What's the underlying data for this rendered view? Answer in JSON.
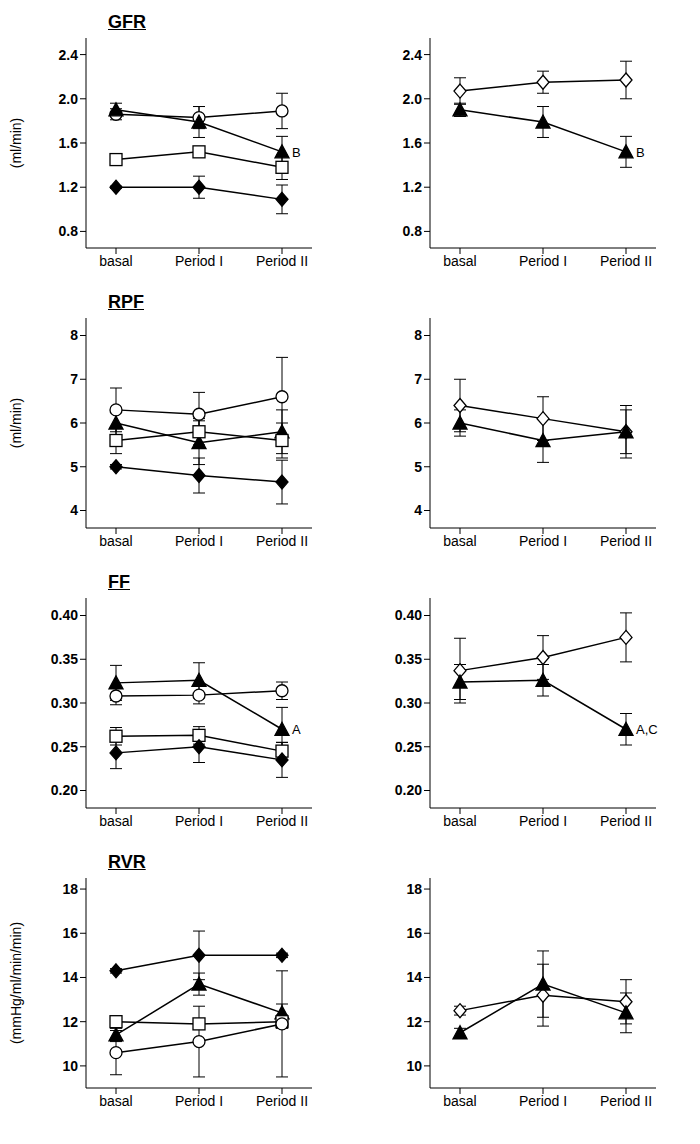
{
  "chart_data": [
    {
      "type": "line",
      "title": "GFR",
      "y_label": "(ml/min)",
      "categories": [
        "basal",
        "Period I",
        "Period II"
      ],
      "ylim": [
        0.65,
        2.55
      ],
      "yticks": [
        0.8,
        1.2,
        1.6,
        {
          "value": 2,
          "label": "2.0"
        },
        2.4
      ],
      "grid": false,
      "series": [
        {
          "color": "#000000",
          "marker": "open_circle",
          "values": [
            1.86,
            1.83,
            1.89
          ],
          "errors": [
            0.05,
            0.1,
            0.16
          ]
        },
        {
          "color": "#000000",
          "marker": "filled_triangle",
          "values": [
            1.9,
            1.79,
            1.52
          ],
          "errors": [
            0.06,
            0.14,
            0.14
          ],
          "annotation": {
            "x": "Period II",
            "text": "B"
          }
        },
        {
          "color": "#000000",
          "marker": "open_square",
          "values": [
            1.45,
            1.52,
            1.38
          ],
          "errors": [
            0.03,
            0.03,
            0.11
          ]
        },
        {
          "color": "#000000",
          "marker": "filled_diamond",
          "values": [
            1.2,
            1.2,
            1.09
          ],
          "errors": [
            0.01,
            0.1,
            0.13
          ]
        }
      ]
    },
    {
      "type": "line",
      "categories": [
        "basal",
        "Period I",
        "Period II"
      ],
      "ylim": [
        0.65,
        2.55
      ],
      "yticks": [
        0.8,
        1.2,
        1.6,
        {
          "value": 2,
          "label": "2.0"
        },
        2.4
      ],
      "grid": false,
      "series": [
        {
          "color": "#000000",
          "marker": "open_diamond",
          "values": [
            2.07,
            2.15,
            2.17
          ],
          "errors": [
            0.12,
            0.1,
            0.17
          ]
        },
        {
          "color": "#000000",
          "marker": "filled_triangle",
          "values": [
            1.9,
            1.79,
            1.52
          ],
          "errors": [
            0.06,
            0.14,
            0.14
          ],
          "annotation": {
            "x": "Period II",
            "text": "B"
          }
        }
      ]
    },
    {
      "type": "line",
      "title": "RPF",
      "y_label": "(ml/min)",
      "categories": [
        "basal",
        "Period I",
        "Period II"
      ],
      "ylim": [
        3.6,
        8.4
      ],
      "yticks": [
        4,
        5,
        6,
        7,
        8
      ],
      "grid": false,
      "series": [
        {
          "color": "#000000",
          "marker": "open_circle",
          "values": [
            6.3,
            6.2,
            6.6
          ],
          "errors": [
            0.5,
            0.5,
            0.9
          ]
        },
        {
          "color": "#000000",
          "marker": "filled_triangle",
          "values": [
            6.0,
            5.55,
            5.8
          ],
          "errors": [
            0.3,
            0.5,
            0.5
          ]
        },
        {
          "color": "#000000",
          "marker": "open_square",
          "values": [
            5.6,
            5.8,
            5.6
          ],
          "errors": [
            0.3,
            0.3,
            0.4
          ]
        },
        {
          "color": "#000000",
          "marker": "filled_diamond",
          "values": [
            5.0,
            4.8,
            4.65
          ],
          "errors": [
            0.05,
            0.4,
            0.5
          ]
        }
      ]
    },
    {
      "type": "line",
      "categories": [
        "basal",
        "Period I",
        "Period II"
      ],
      "ylim": [
        3.6,
        8.4
      ],
      "yticks": [
        4,
        5,
        6,
        7,
        8
      ],
      "grid": false,
      "series": [
        {
          "color": "#000000",
          "marker": "open_diamond",
          "values": [
            6.4,
            6.1,
            5.8
          ],
          "errors": [
            0.6,
            0.5,
            0.6
          ]
        },
        {
          "color": "#000000",
          "marker": "filled_triangle",
          "values": [
            6.0,
            5.6,
            5.8
          ],
          "errors": [
            0.3,
            0.5,
            0.5
          ]
        }
      ]
    },
    {
      "type": "line",
      "title": "FF",
      "categories": [
        "basal",
        "Period I",
        "Period II"
      ],
      "ylim": [
        0.18,
        0.42
      ],
      "yticks": [
        {
          "value": 0.2,
          "label": "0.20"
        },
        0.25,
        {
          "value": 0.3,
          "label": "0.30"
        },
        0.35,
        {
          "value": 0.4,
          "label": "0.40"
        }
      ],
      "grid": false,
      "series": [
        {
          "color": "#000000",
          "marker": "open_circle",
          "values": [
            0.308,
            0.309,
            0.314
          ],
          "errors": [
            0.01,
            0.01,
            0.01
          ]
        },
        {
          "color": "#000000",
          "marker": "filled_triangle",
          "values": [
            0.323,
            0.326,
            0.27
          ],
          "errors": [
            0.02,
            0.02,
            0.025
          ],
          "annotation": {
            "x": "Period II",
            "text": "A"
          }
        },
        {
          "color": "#000000",
          "marker": "open_square",
          "values": [
            0.262,
            0.263,
            0.245
          ],
          "errors": [
            0.01,
            0.01,
            0.01
          ]
        },
        {
          "color": "#000000",
          "marker": "filled_diamond",
          "values": [
            0.243,
            0.25,
            0.235
          ],
          "errors": [
            0.018,
            0.018,
            0.02
          ]
        }
      ]
    },
    {
      "type": "line",
      "categories": [
        "basal",
        "Period I",
        "Period II"
      ],
      "ylim": [
        0.18,
        0.42
      ],
      "yticks": [
        {
          "value": 0.2,
          "label": "0.20"
        },
        0.25,
        {
          "value": 0.3,
          "label": "0.30"
        },
        0.35,
        {
          "value": 0.4,
          "label": "0.40"
        }
      ],
      "grid": false,
      "series": [
        {
          "color": "#000000",
          "marker": "open_diamond",
          "values": [
            0.337,
            0.352,
            0.375
          ],
          "errors": [
            0.037,
            0.025,
            0.028
          ]
        },
        {
          "color": "#000000",
          "marker": "filled_triangle",
          "values": [
            0.324,
            0.326,
            0.27
          ],
          "errors": [
            0.02,
            0.018,
            0.018
          ],
          "annotation": {
            "x": "Period II",
            "text": "A,C"
          }
        }
      ]
    },
    {
      "type": "line",
      "title": "RVR",
      "y_label": "(mmHg/ml/min/min)",
      "categories": [
        "basal",
        "Period I",
        "Period II"
      ],
      "ylim": [
        9,
        18.5
      ],
      "yticks": [
        10,
        12,
        14,
        16,
        18
      ],
      "grid": false,
      "series": [
        {
          "color": "#000000",
          "marker": "filled_diamond",
          "values": [
            14.3,
            15.0,
            15.0
          ],
          "errors": [
            0.1,
            1.1,
            0.1
          ]
        },
        {
          "color": "#000000",
          "marker": "filled_triangle",
          "values": [
            11.4,
            13.7,
            12.4
          ],
          "errors": [
            0.3,
            0.5,
            0.4
          ]
        },
        {
          "color": "#000000",
          "marker": "open_square",
          "values": [
            12.0,
            11.9,
            12.0
          ],
          "errors": [
            0.2,
            0.2,
            0.3
          ]
        },
        {
          "color": "#000000",
          "marker": "open_circle",
          "values": [
            10.6,
            11.1,
            11.9
          ],
          "errors": [
            1.0,
            1.6,
            2.4
          ]
        }
      ]
    },
    {
      "type": "line",
      "categories": [
        "basal",
        "Period I",
        "Period II"
      ],
      "ylim": [
        9,
        18.5
      ],
      "yticks": [
        10,
        12,
        14,
        16,
        18
      ],
      "grid": false,
      "series": [
        {
          "color": "#000000",
          "marker": "open_diamond",
          "values": [
            12.5,
            13.2,
            12.9
          ],
          "errors": [
            0.2,
            1.4,
            1.0
          ]
        },
        {
          "color": "#000000",
          "marker": "filled_triangle",
          "values": [
            11.5,
            13.7,
            12.4
          ],
          "errors": [
            0.2,
            1.5,
            0.9
          ]
        }
      ]
    }
  ]
}
